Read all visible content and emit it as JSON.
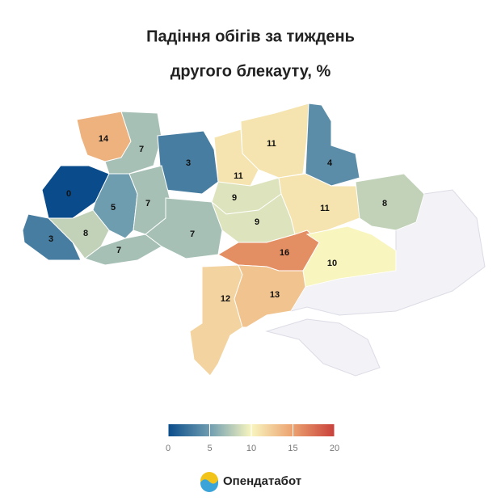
{
  "chart_data": {
    "type": "choropleth",
    "title": [
      "Падіння обігів за тиждень",
      "другого блекауту, %"
    ],
    "values": [
      14,
      7,
      3,
      11,
      4,
      0,
      11,
      9,
      5,
      7,
      9,
      11,
      8,
      3,
      8,
      7,
      7,
      16,
      10,
      12,
      13
    ],
    "clim": [
      0,
      20
    ],
    "cticks": [
      0,
      5,
      10,
      15,
      20
    ],
    "colors": [
      "#0a4c8b",
      "#6f9db0",
      "#f8f5bf",
      "#eba16f",
      "#c9403a"
    ],
    "no_data_color": "#f2f2f7",
    "brand": "Опендатабот"
  }
}
